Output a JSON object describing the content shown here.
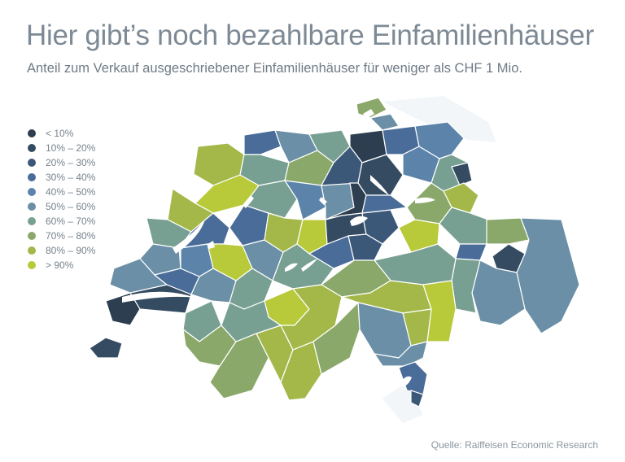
{
  "title": "Hier gibt’s noch bezahlbare Einfamilienhäuser",
  "subtitle": "Anteil zum Verkauf ausgeschriebener Einfamilienhäuser für weniger als CHF 1 Mio.",
  "legend": [
    {
      "label": "< 10%",
      "color": "#2c3e4f"
    },
    {
      "label": "10% – 20%",
      "color": "#344b61"
    },
    {
      "label": "20% – 30%",
      "color": "#3c5878"
    },
    {
      "label": "30% – 40%",
      "color": "#4a6c98"
    },
    {
      "label": "40% – 50%",
      "color": "#5c84aa"
    },
    {
      "label": "50% – 60%",
      "color": "#6a8fa6"
    },
    {
      "label": "60% – 70%",
      "color": "#78a092"
    },
    {
      "label": "70% – 80%",
      "color": "#8aa86a"
    },
    {
      "label": "80% – 90%",
      "color": "#a4b84a"
    },
    {
      "label": "> 90%",
      "color": "#b8c93a"
    }
  ],
  "source": "Quelle: Raiffeisen Economic Research"
}
